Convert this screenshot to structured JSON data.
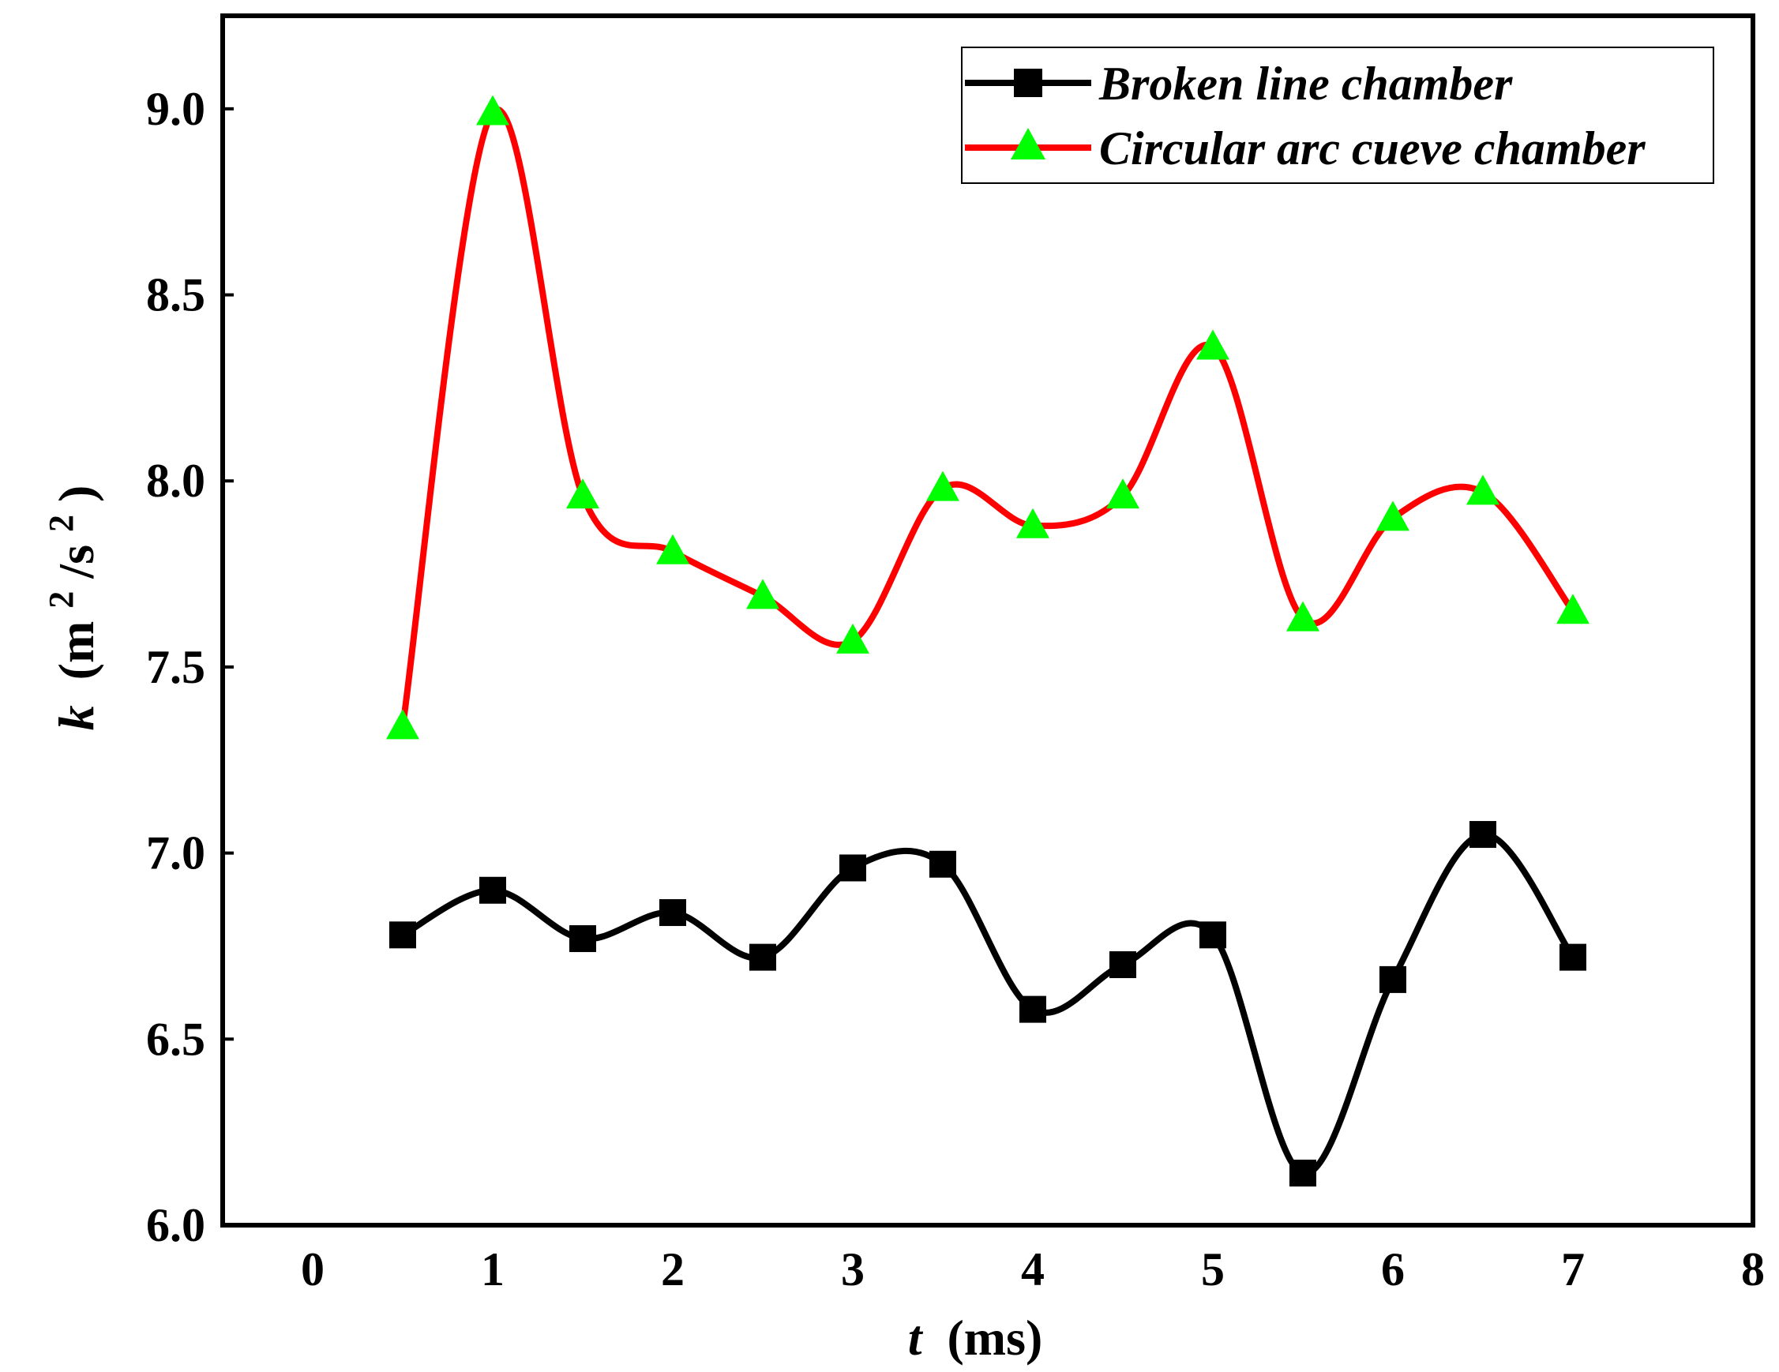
{
  "chart_data": {
    "type": "line",
    "xlabel": {
      "symbol": "t",
      "unit": "(ms)"
    },
    "ylabel": {
      "symbol": "k",
      "unit_prefix": "(m",
      "unit_sup1": "2",
      "unit_mid": "/s",
      "unit_sup2": "2",
      "unit_suffix": ")"
    },
    "xlim": [
      -0.5,
      8
    ],
    "ylim": [
      6.0,
      9.25
    ],
    "xticks": [
      0,
      1,
      2,
      3,
      4,
      5,
      6,
      7,
      8
    ],
    "xtick_labels": [
      "0",
      "1",
      "2",
      "3",
      "4",
      "5",
      "6",
      "7",
      "8"
    ],
    "yticks": [
      6.0,
      6.5,
      7.0,
      7.5,
      8.0,
      8.5,
      9.0
    ],
    "ytick_labels": [
      "6.0",
      "6.5",
      "7.0",
      "7.5",
      "8.0",
      "8.5",
      "9.0"
    ],
    "grid": false,
    "legend_position": "top-right",
    "x": [
      0.5,
      1.0,
      1.5,
      2.0,
      2.5,
      3.0,
      3.5,
      4.0,
      4.5,
      5.0,
      5.5,
      6.0,
      6.5,
      7.0
    ],
    "series": [
      {
        "name": "Broken line chamber",
        "marker": "square",
        "line_color": "#000000",
        "marker_color": "#000000",
        "values": [
          6.78,
          6.9,
          6.77,
          6.84,
          6.72,
          6.96,
          6.97,
          6.58,
          6.7,
          6.78,
          6.14,
          6.66,
          7.05,
          6.72
        ]
      },
      {
        "name": "Circular arc cueve chamber",
        "marker": "triangle",
        "line_color": "#ff0000",
        "marker_color": "#00ff00",
        "values": [
          7.34,
          8.99,
          7.96,
          7.81,
          7.69,
          7.57,
          7.98,
          7.88,
          7.96,
          8.36,
          7.63,
          7.9,
          7.97,
          7.65
        ]
      }
    ]
  }
}
